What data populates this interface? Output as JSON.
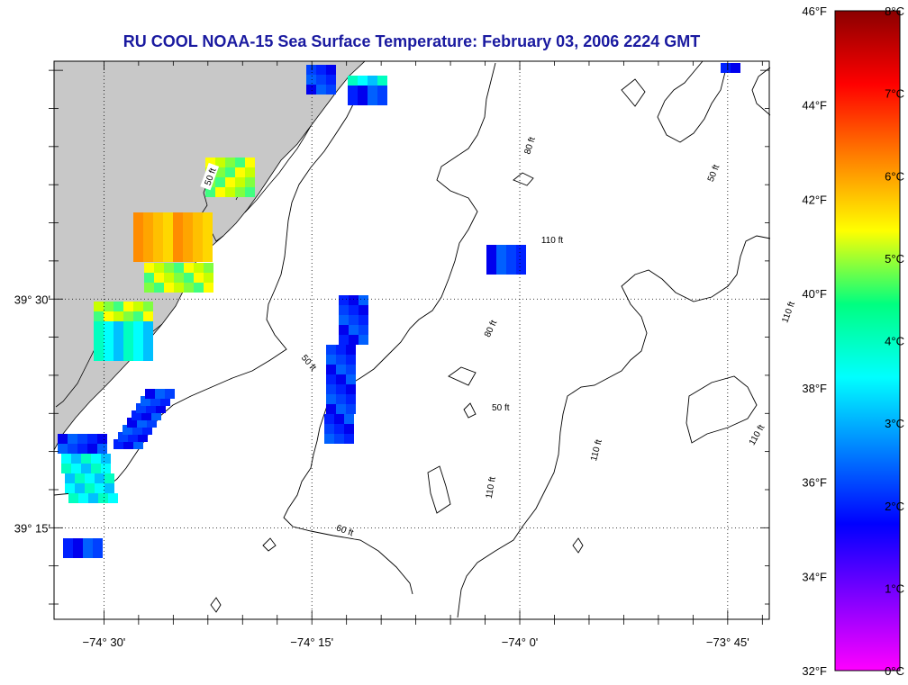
{
  "title": "RU COOL  NOAA-15  Sea Surface Temperature:  February 03, 2006 2224 GMT",
  "map": {
    "lat_labels": [
      {
        "text": "39° 30'",
        "lat": 39.5
      },
      {
        "text": "39° 15'",
        "lat": 39.25
      }
    ],
    "lon_labels": [
      {
        "text": "−74° 30'",
        "lon": -74.5
      },
      {
        "text": "−74° 15'",
        "lon": -74.25
      },
      {
        "text": "−74° 0'",
        "lon": -74.0
      },
      {
        "text": "−73° 45'",
        "lon": -73.75
      }
    ],
    "contour_labels": [
      {
        "text": "50 ft",
        "lon": -74.373,
        "lat": 39.634,
        "angle": -70
      },
      {
        "text": "80 ft",
        "lon": -73.989,
        "lat": 39.668,
        "angle": -72
      },
      {
        "text": "50 ft",
        "lon": -73.768,
        "lat": 39.638,
        "angle": -68
      },
      {
        "text": "110 ft",
        "lon": -73.961,
        "lat": 39.565,
        "angle": 0
      },
      {
        "text": "110 ft",
        "lon": -73.678,
        "lat": 39.486,
        "angle": -70
      },
      {
        "text": "80 ft",
        "lon": -74.036,
        "lat": 39.468,
        "angle": -65
      },
      {
        "text": "50 ft",
        "lon": -74.253,
        "lat": 39.431,
        "angle": 50
      },
      {
        "text": "50 ft",
        "lon": -74.023,
        "lat": 39.382,
        "angle": 0
      },
      {
        "text": "110 ft",
        "lon": -73.909,
        "lat": 39.335,
        "angle": -75
      },
      {
        "text": "110 ft",
        "lon": -73.716,
        "lat": 39.352,
        "angle": -60
      },
      {
        "text": "110 ft",
        "lon": -74.036,
        "lat": 39.294,
        "angle": -80
      },
      {
        "text": "60 ft",
        "lon": -74.21,
        "lat": 39.248,
        "angle": 20
      }
    ]
  },
  "colorbar": {
    "f_labels": [
      "46°F",
      "44°F",
      "42°F",
      "40°F",
      "38°F",
      "36°F",
      "34°F",
      "32°F"
    ],
    "c_labels": [
      "8°C",
      "7°C",
      "6°C",
      "5°C",
      "4°C",
      "3°C",
      "2°C",
      "1°C",
      "0°C"
    ],
    "colors": [
      "#8b0000",
      "#ff0000",
      "#ff8000",
      "#ffff00",
      "#00ff80",
      "#00ffff",
      "#0080ff",
      "#0000ff",
      "#8000ff",
      "#ff00ff"
    ]
  }
}
